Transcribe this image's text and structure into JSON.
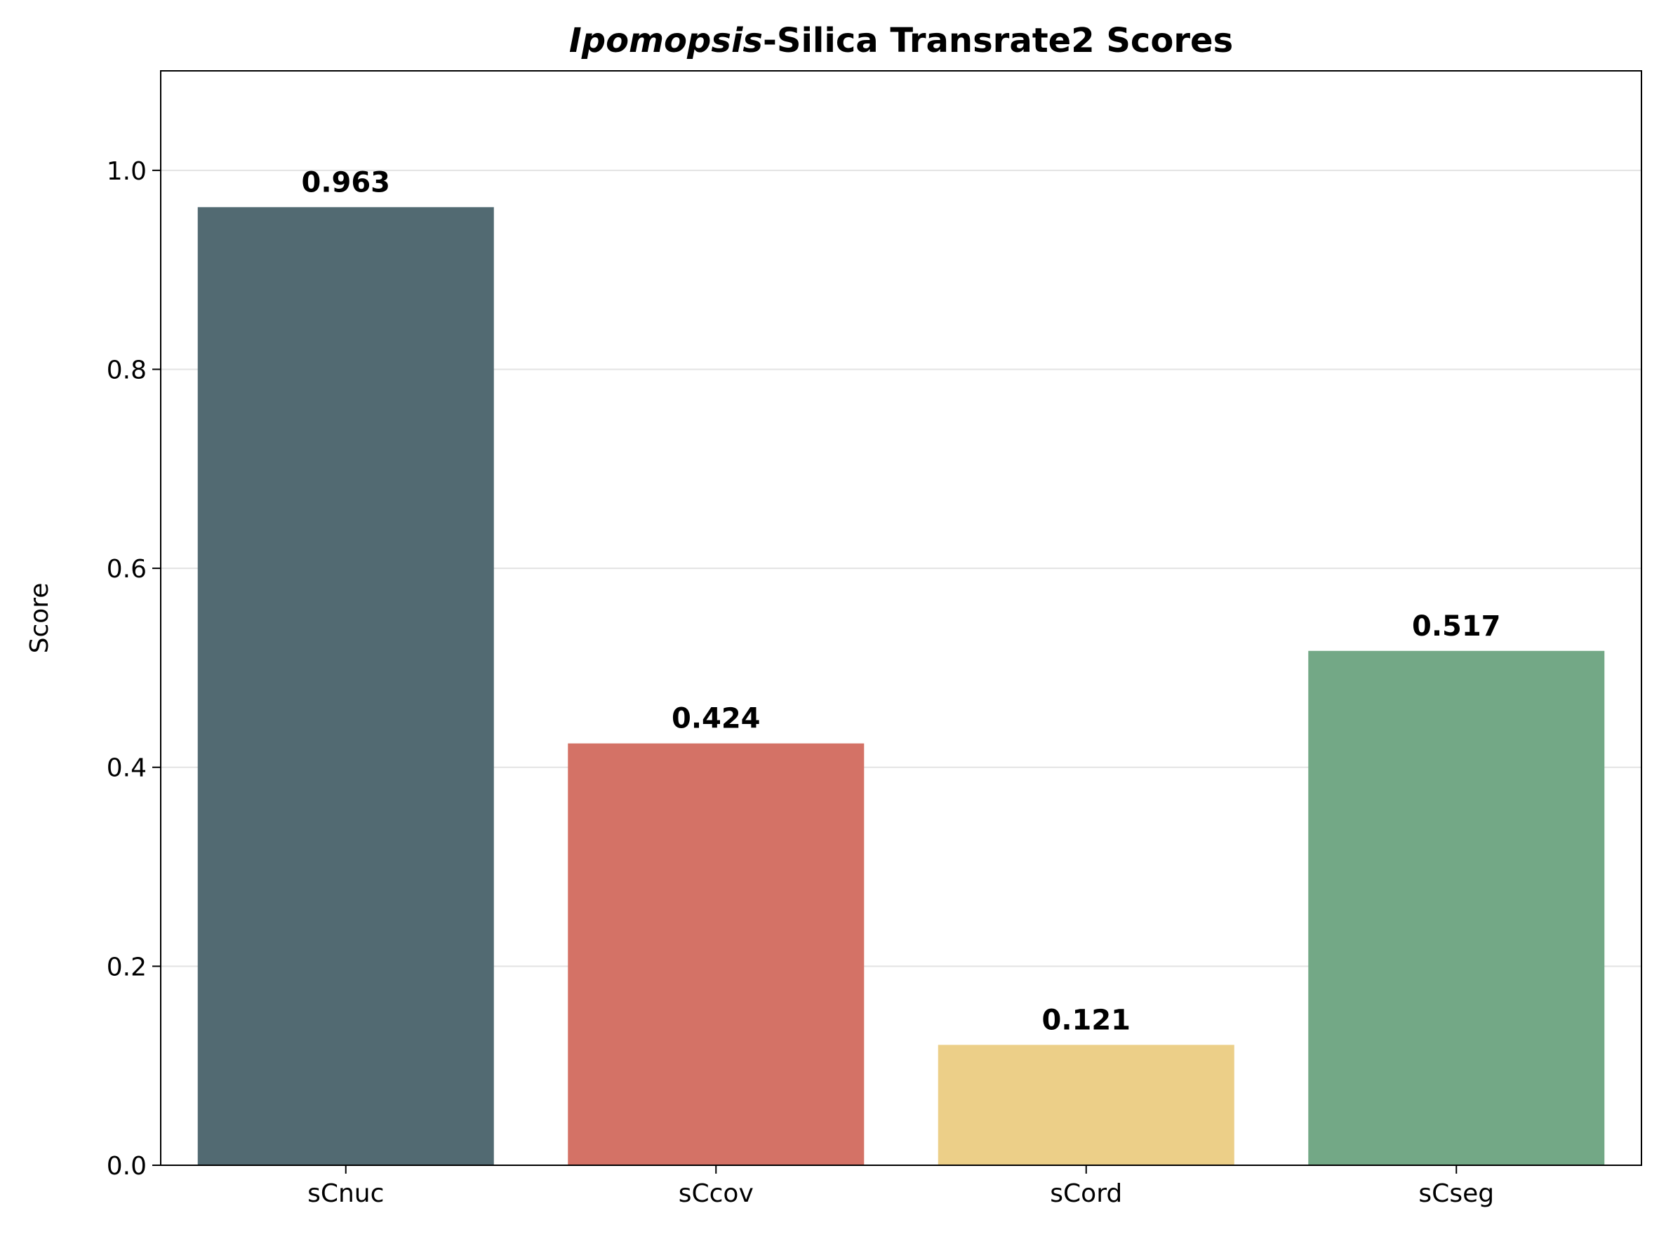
{
  "chart_data": {
    "type": "bar",
    "title_italic": "Ipomopsis",
    "title_rest": "-Silica Transrate2 Scores",
    "xlabel": "",
    "ylabel": "Score",
    "ylim": [
      0,
      1.1
    ],
    "yticks": [
      0.0,
      0.2,
      0.4,
      0.6,
      0.8,
      1.0
    ],
    "ytick_labels": [
      "0.0",
      "0.2",
      "0.4",
      "0.6",
      "0.8",
      "1.0"
    ],
    "grid": "horizontal",
    "categories": [
      "sCnuc",
      "sCcov",
      "sCord",
      "sCseg"
    ],
    "values": [
      0.963,
      0.424,
      0.121,
      0.517
    ],
    "value_labels": [
      "0.963",
      "0.424",
      "0.121",
      "0.517"
    ],
    "colors": [
      "#526a72",
      "#d47266",
      "#eccf88",
      "#73a886"
    ]
  }
}
